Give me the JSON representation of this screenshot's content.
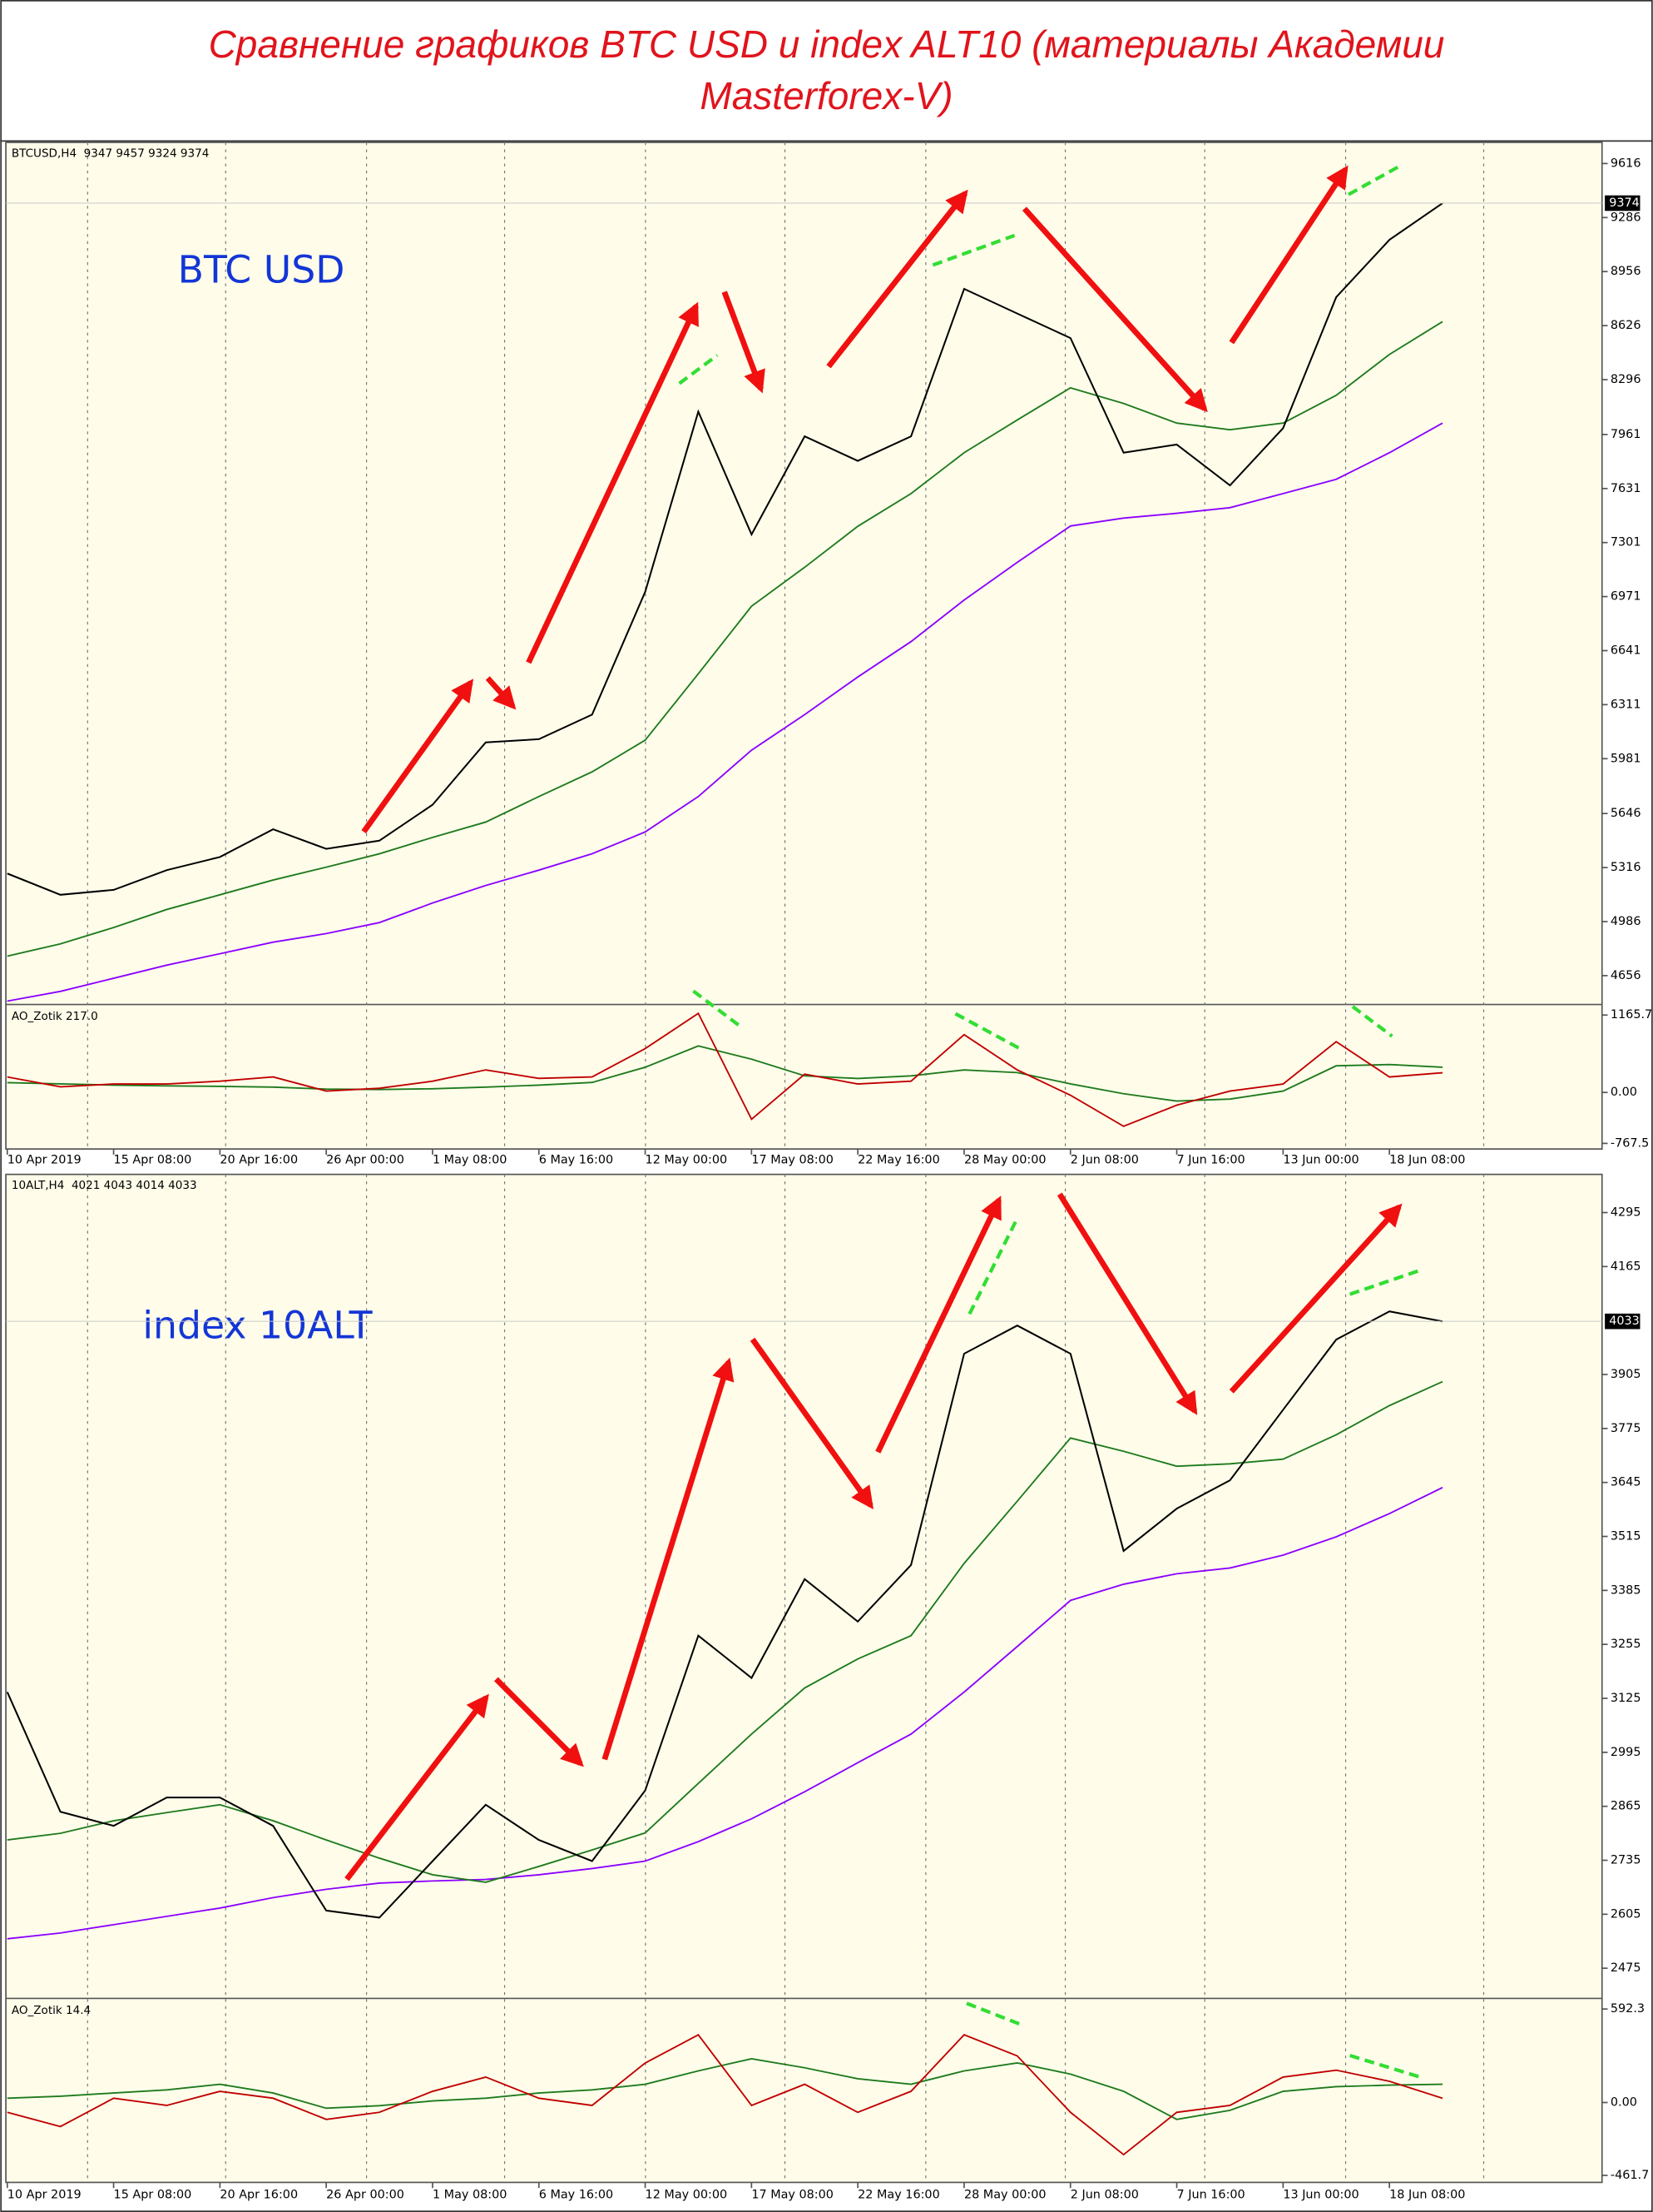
{
  "title": "Сравнение графиков BTC USD и index ALT10 (материалы Академии Masterforex-V)",
  "chart_data": [
    {
      "type": "line",
      "header": "BTCUSD,H4  9347 9457 9324 9374",
      "label": "BTC USD",
      "x": [
        0,
        16,
        32,
        48,
        64,
        80,
        96,
        112,
        128,
        144,
        160,
        176,
        192,
        208,
        224,
        240,
        256,
        272,
        288,
        304,
        320,
        336,
        352,
        368,
        384,
        400,
        416,
        432
      ],
      "xlim": [
        0,
        480
      ],
      "ylim": [
        4484,
        9745
      ],
      "yticks": [
        9616,
        9286,
        8956,
        8626,
        8296,
        7961,
        7631,
        7301,
        6971,
        6641,
        6311,
        5981,
        5646,
        5316,
        4986,
        4656
      ],
      "last_price": 9374,
      "series": [
        {
          "color": "#8b00ff",
          "values": [
            4500,
            4560,
            4640,
            4720,
            4790,
            4860,
            4913,
            4980,
            5100,
            5206,
            5300,
            5400,
            5534,
            5750,
            6033,
            6250,
            6480,
            6696,
            6950,
            7180,
            7402,
            7450,
            7480,
            7514,
            7600,
            7687,
            7850,
            8031
          ]
        },
        {
          "color": "#1e7a1e",
          "values": [
            4775,
            4850,
            4950,
            5060,
            5150,
            5240,
            5318,
            5400,
            5500,
            5594,
            5750,
            5900,
            6094,
            6500,
            6912,
            7150,
            7400,
            7600,
            7850,
            8050,
            8246,
            8150,
            8031,
            7990,
            8031,
            8200,
            8450,
            8651
          ]
        },
        {
          "color": "#000000",
          "values": [
            5280,
            5150,
            5180,
            5300,
            5380,
            5550,
            5430,
            5480,
            5700,
            6080,
            6100,
            6250,
            7000,
            8100,
            7350,
            7950,
            7800,
            7950,
            8850,
            8700,
            8550,
            7850,
            7900,
            7650,
            8000,
            8800,
            9150,
            9374
          ]
        }
      ]
    },
    {
      "type": "line",
      "header": "AO_Zotik 217.0",
      "x": [
        0,
        16,
        32,
        48,
        64,
        80,
        96,
        112,
        128,
        144,
        160,
        176,
        192,
        208,
        224,
        240,
        256,
        272,
        288,
        304,
        320,
        336,
        352,
        368,
        384,
        400,
        416,
        432
      ],
      "xlim": [
        0,
        480
      ],
      "ylim": [
        -852,
        1314
      ],
      "yticks": [
        1165.7,
        {
          "value": 0,
          "label": "0.00"
        },
        -767.5
      ],
      "xticks": [
        {
          "value": 0,
          "label": "10 Apr 2019"
        },
        {
          "value": 32,
          "label": "15 Apr 08:00"
        },
        {
          "value": 64,
          "label": "20 Apr 16:00"
        },
        {
          "value": 96,
          "label": "26 Apr 00:00"
        },
        {
          "value": 128,
          "label": "1 May 08:00"
        },
        {
          "value": 160,
          "label": "6 May 16:00"
        },
        {
          "value": 192,
          "label": "12 May 00:00"
        },
        {
          "value": 224,
          "label": "17 May 08:00"
        },
        {
          "value": 256,
          "label": "22 May 16:00"
        },
        {
          "value": 288,
          "label": "28 May 00:00"
        },
        {
          "value": 320,
          "label": "2 Jun 08:00"
        },
        {
          "value": 352,
          "label": "7 Jun 16:00"
        },
        {
          "value": 384,
          "label": "13 Jun 00:00"
        },
        {
          "value": 416,
          "label": "18 Jun 08:00"
        }
      ],
      "series": [
        {
          "color": "#1e7a1e",
          "values": [
            149,
            130,
            110,
            100,
            90,
            80,
            50,
            45,
            55,
            80,
            110,
            150,
            380,
            700,
            500,
            250,
            210,
            250,
            340,
            300,
            130,
            -20,
            -130,
            -100,
            20,
            400,
            420,
            380
          ]
        },
        {
          "color": "#c00000",
          "values": [
            234,
            85,
            127,
            127,
            170,
            234,
            21,
            64,
            170,
            340,
            212,
            234,
            659,
            1190,
            -404,
            276,
            127,
            170,
            871,
            340,
            -42,
            -510,
            -191,
            21,
            127,
            765,
            234,
            297
          ]
        }
      ]
    },
    {
      "type": "line",
      "header": "10ALT,H4  4021 4043 4014 4033",
      "label": "index 10ALT",
      "x": [
        0,
        16,
        32,
        48,
        64,
        80,
        96,
        112,
        128,
        144,
        160,
        176,
        192,
        208,
        224,
        240,
        256,
        272,
        288,
        304,
        320,
        336,
        352,
        368,
        384,
        400,
        416,
        432
      ],
      "xlim": [
        0,
        480
      ],
      "ylim": [
        2404,
        4387
      ],
      "yticks": [
        4295,
        4165,
        3905,
        3775,
        3645,
        3515,
        3385,
        3255,
        3125,
        2995,
        2865,
        2735,
        2605,
        2475
      ],
      "last_price": 4033,
      "series": [
        {
          "color": "#8b00ff",
          "values": [
            2546,
            2560,
            2580,
            2600,
            2620,
            2645,
            2665,
            2680,
            2685,
            2689,
            2700,
            2715,
            2733,
            2780,
            2835,
            2900,
            2970,
            3039,
            3140,
            3250,
            3361,
            3400,
            3425,
            3439,
            3470,
            3514,
            3570,
            3633
          ]
        },
        {
          "color": "#1e7a1e",
          "values": [
            2784,
            2800,
            2830,
            2850,
            2869,
            2830,
            2784,
            2740,
            2700,
            2682,
            2720,
            2760,
            2801,
            2920,
            3039,
            3150,
            3220,
            3276,
            3450,
            3600,
            3752,
            3720,
            3684,
            3690,
            3701,
            3760,
            3830,
            3888
          ]
        },
        {
          "color": "#000000",
          "values": [
            3140,
            2852,
            2818,
            2886,
            2886,
            2818,
            2614,
            2597,
            2733,
            2869,
            2784,
            2733,
            2903,
            3276,
            3174,
            3412,
            3310,
            3446,
            3955,
            4023,
            3955,
            3480,
            3582,
            3650,
            3820,
            3989,
            4057,
            4033
          ]
        }
      ]
    },
    {
      "type": "line",
      "header": "AO_Zotik 14.4",
      "x": [
        0,
        16,
        32,
        48,
        64,
        80,
        96,
        112,
        128,
        144,
        160,
        176,
        192,
        208,
        224,
        240,
        256,
        272,
        288,
        304,
        320,
        336,
        352,
        368,
        384,
        400,
        416,
        432
      ],
      "xlim": [
        0,
        480
      ],
      "ylim": [
        -506,
        655
      ],
      "yticks": [
        592.3,
        {
          "value": 0,
          "label": "0.00"
        },
        -461.7
      ],
      "xticks": [
        {
          "value": 0,
          "label": "10 Apr 2019"
        },
        {
          "value": 32,
          "label": "15 Apr 08:00"
        },
        {
          "value": 64,
          "label": "20 Apr 16:00"
        },
        {
          "value": 96,
          "label": "26 Apr 00:00"
        },
        {
          "value": 128,
          "label": "1 May 08:00"
        },
        {
          "value": 160,
          "label": "6 May 16:00"
        },
        {
          "value": 192,
          "label": "12 May 00:00"
        },
        {
          "value": 224,
          "label": "17 May 08:00"
        },
        {
          "value": 256,
          "label": "22 May 16:00"
        },
        {
          "value": 288,
          "label": "28 May 00:00"
        },
        {
          "value": 320,
          "label": "2 Jun 08:00"
        },
        {
          "value": 352,
          "label": "7 Jun 16:00"
        },
        {
          "value": 384,
          "label": "13 Jun 00:00"
        },
        {
          "value": 416,
          "label": "18 Jun 08:00"
        }
      ],
      "series": [
        {
          "color": "#1e7a1e",
          "values": [
            27,
            40,
            60,
            80,
            116,
            60,
            -36,
            -20,
            10,
            27,
            60,
            80,
            116,
            200,
            277,
            220,
            150,
            116,
            200,
            250,
            180,
            71,
            -107,
            -50,
            71,
            100,
            110,
            116
          ]
        },
        {
          "color": "#c00000",
          "values": [
            -62,
            -152,
            27,
            -18,
            71,
            27,
            -107,
            -62,
            71,
            161,
            27,
            -18,
            250,
            429,
            -18,
            116,
            -62,
            71,
            429,
            295,
            -62,
            -330,
            -62,
            -18,
            161,
            205,
            134,
            27
          ]
        }
      ]
    }
  ]
}
